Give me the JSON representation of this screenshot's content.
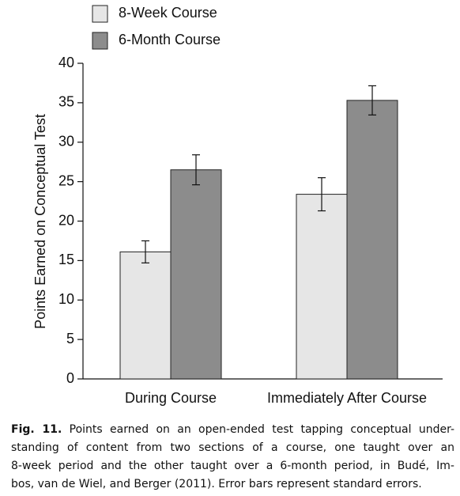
{
  "chart_data": {
    "type": "bar",
    "y_label": "Points Earned on Conceptual Test",
    "categories": [
      "During Course",
      "Immediately After Course"
    ],
    "series": [
      {
        "name": "8-Week Course",
        "color": "#e6e6e6",
        "values": [
          16.1,
          23.4
        ],
        "errors": [
          1.4,
          2.1
        ]
      },
      {
        "name": "6-Month Course",
        "color": "#8c8c8c",
        "values": [
          26.5,
          35.3
        ],
        "errors": [
          1.9,
          1.85
        ]
      }
    ],
    "ylim": [
      0,
      40
    ],
    "yticks": [
      0,
      5,
      10,
      15,
      20,
      25,
      30,
      35,
      40
    ]
  },
  "caption": {
    "label": "Fig. 11.",
    "lines": [
      "Points earned on an open-ended test tapping conceptual under-",
      "standing of content from two sections of a course, one taught over an",
      "8-week period and the other taught over a 6-month period, in Budé, Im-",
      "bos, van de Wiel, and Berger (2011). Error bars represent standard errors."
    ]
  }
}
